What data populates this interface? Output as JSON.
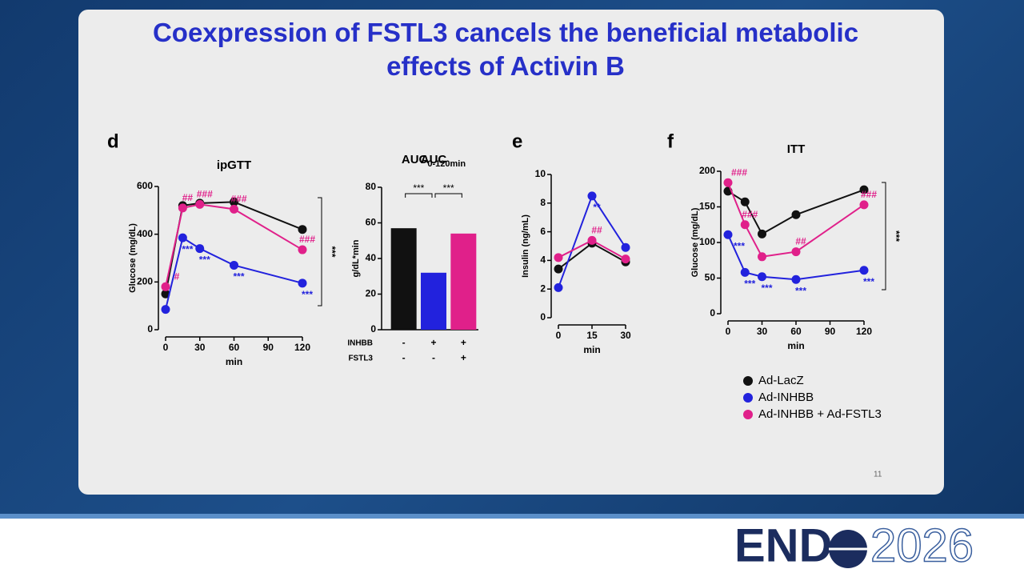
{
  "slide": {
    "title": "Coexpression of FSTL3 cancels the beneficial metabolic effects of Activin B",
    "page_number": "11",
    "panels": [
      "d",
      "e",
      "f"
    ]
  },
  "footer": {
    "logo_left": "END",
    "logo_right": "2026"
  },
  "chart_data": [
    {
      "type": "line",
      "title": "ipGTT",
      "xlabel": "min",
      "ylabel": "Glucose (mg/dL)",
      "x": [
        0,
        15,
        30,
        60,
        120
      ],
      "xlim": [
        0,
        120
      ],
      "xticks": [
        0,
        30,
        60,
        90,
        120
      ],
      "ylim": [
        0,
        600
      ],
      "yticks": [
        0,
        200,
        400,
        600
      ],
      "bracket_label": "***",
      "series": [
        {
          "color": "#111111",
          "values": [
            150,
            520,
            530,
            535,
            420
          ],
          "significance": [
            null,
            null,
            null,
            null,
            null
          ]
        },
        {
          "color": "#2222dd",
          "values": [
            85,
            385,
            340,
            270,
            195
          ],
          "significance": [
            null,
            "***",
            "***",
            "***",
            "***"
          ]
        },
        {
          "color": "#e0208a",
          "values": [
            180,
            510,
            525,
            505,
            335
          ],
          "significance": [
            "#",
            "##",
            "###",
            "###",
            "###"
          ]
        }
      ]
    },
    {
      "type": "bar",
      "title": "AUC",
      "title_subscript": "0-120min",
      "ylabel": "g/dL*min",
      "values": [
        57,
        32,
        54
      ],
      "colors": [
        "#111111",
        "#2222dd",
        "#e0208a"
      ],
      "ylim": [
        0,
        80
      ],
      "yticks": [
        0,
        20,
        40,
        60,
        80
      ],
      "comparisons": [
        "***",
        "***"
      ],
      "conditions": [
        {
          "name": "INHBB",
          "values": [
            "-",
            "+",
            "+"
          ]
        },
        {
          "name": "FSTL3",
          "values": [
            "-",
            "-",
            "+"
          ]
        }
      ]
    },
    {
      "type": "line",
      "xlabel": "min",
      "ylabel": "Insulin (ng/mL)",
      "x": [
        0,
        15,
        30
      ],
      "xlim": [
        0,
        30
      ],
      "xticks": [
        0,
        15,
        30
      ],
      "ylim": [
        0,
        10
      ],
      "yticks": [
        0,
        2,
        4,
        6,
        8,
        10
      ],
      "series": [
        {
          "color": "#111111",
          "values": [
            3.4,
            5.2,
            3.9
          ],
          "significance": [
            null,
            null,
            null
          ]
        },
        {
          "color": "#2222dd",
          "values": [
            2.1,
            8.5,
            4.9
          ],
          "significance": [
            null,
            "**",
            null
          ]
        },
        {
          "color": "#e0208a",
          "values": [
            4.2,
            5.4,
            4.1
          ],
          "significance": [
            null,
            "##",
            null
          ]
        }
      ]
    },
    {
      "type": "line",
      "title": "ITT",
      "xlabel": "min",
      "ylabel": "Glucose (mg/dL)",
      "x": [
        0,
        15,
        30,
        60,
        120
      ],
      "xlim": [
        0,
        120
      ],
      "xticks": [
        0,
        30,
        60,
        90,
        120
      ],
      "ylim": [
        0,
        200
      ],
      "yticks": [
        0,
        50,
        100,
        150,
        200
      ],
      "bracket_label": "***",
      "series": [
        {
          "name": "Ad-LacZ",
          "color": "#111111",
          "values": [
            172,
            157,
            112,
            139,
            174
          ],
          "significance": [
            null,
            null,
            null,
            null,
            null
          ]
        },
        {
          "name": "Ad-INHBB",
          "color": "#2222dd",
          "values": [
            111,
            58,
            52,
            48,
            61
          ],
          "significance": [
            "***",
            "***",
            "***",
            "***",
            "***"
          ]
        },
        {
          "name": "Ad-INHBB + Ad-FSTL3",
          "color": "#e0208a",
          "values": [
            184,
            125,
            80,
            87,
            153
          ],
          "significance": [
            "###",
            "###",
            null,
            "##",
            "###"
          ]
        }
      ]
    }
  ]
}
